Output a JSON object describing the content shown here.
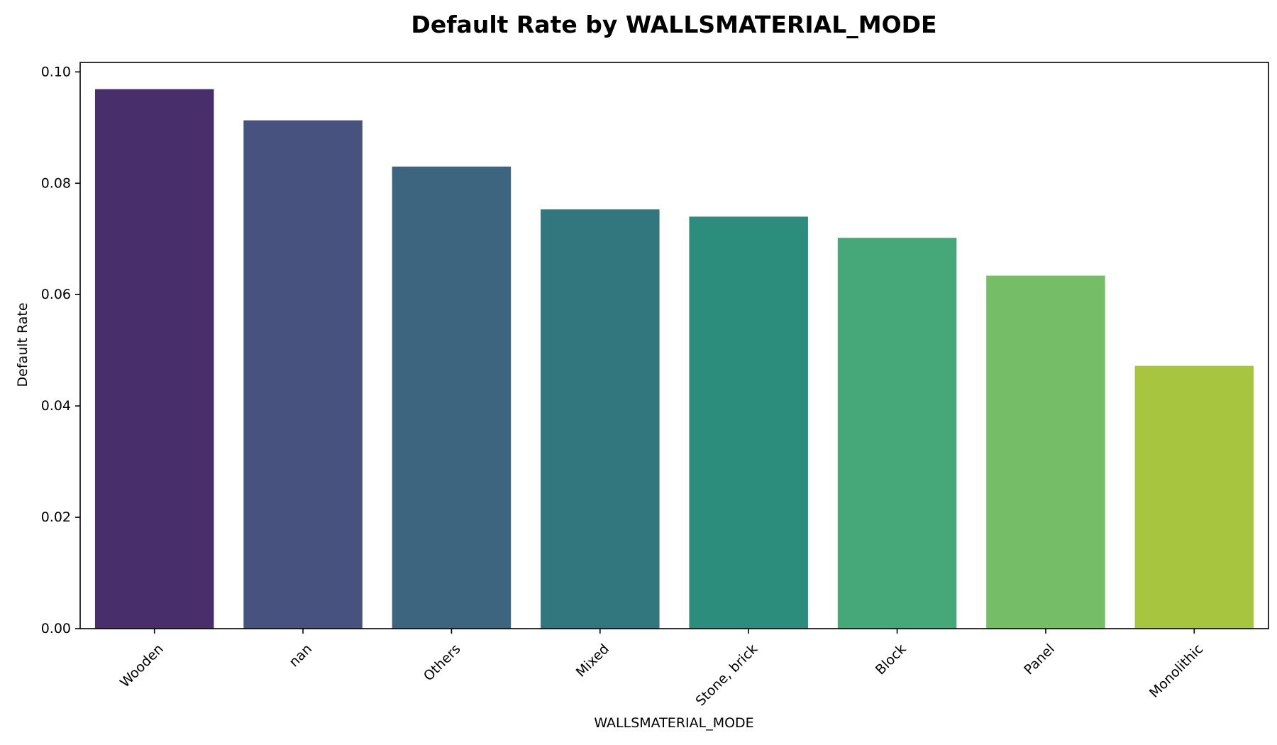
{
  "chart_data": {
    "type": "bar",
    "title": "Default Rate by WALLSMATERIAL_MODE",
    "xlabel": "WALLSMATERIAL_MODE",
    "ylabel": "Default Rate",
    "categories": [
      "Wooden",
      "nan",
      "Others",
      "Mixed",
      "Stone, brick",
      "Block",
      "Panel",
      "Monolithic"
    ],
    "values": [
      0.0969,
      0.0913,
      0.083,
      0.0753,
      0.074,
      0.0702,
      0.0634,
      0.0472
    ],
    "colors": [
      "#482f6b",
      "#47527e",
      "#3d6580",
      "#33777e",
      "#2d8d7c",
      "#46a778",
      "#76bd67",
      "#a8c540"
    ],
    "ylim": [
      0,
      0.1017
    ],
    "yticks": [
      "0.00",
      "0.02",
      "0.04",
      "0.06",
      "0.08",
      "0.10"
    ],
    "ytick_values": [
      0,
      0.02,
      0.04,
      0.06,
      0.08,
      0.1
    ],
    "grid": false,
    "legend": "none"
  }
}
